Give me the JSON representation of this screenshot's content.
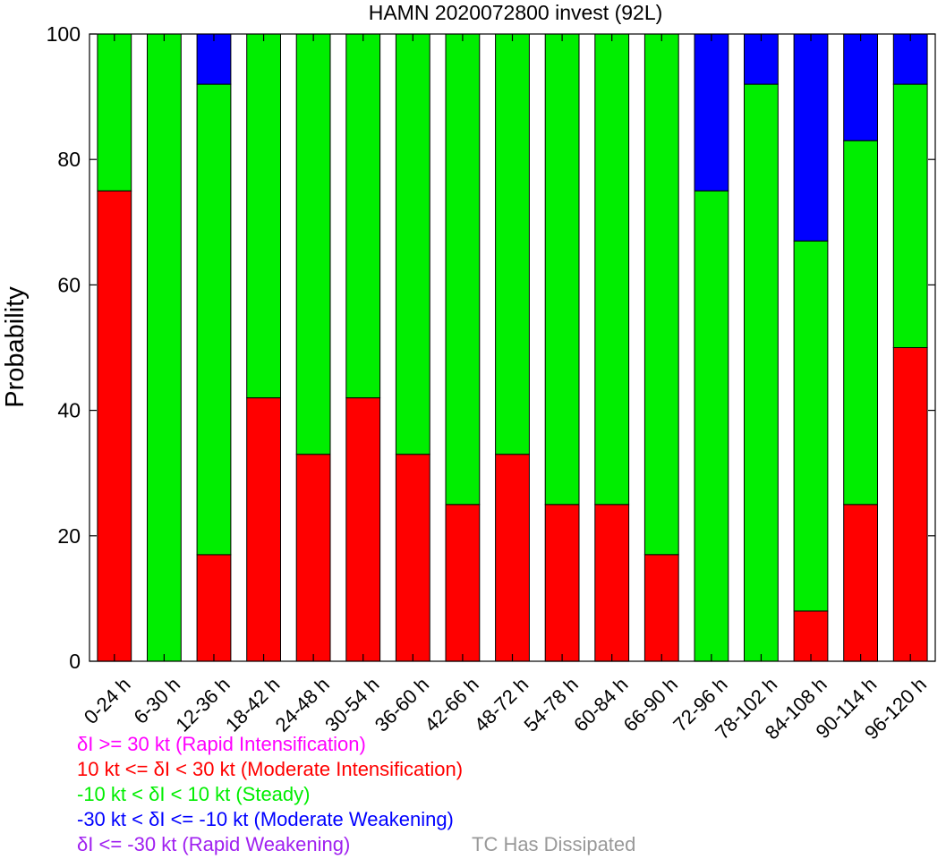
{
  "chart_data": {
    "type": "bar",
    "stacked": true,
    "title": "HAMN 2020072800 invest (92L)",
    "xlabel": "",
    "ylabel": "Probability",
    "ylim": [
      0,
      100
    ],
    "yticks": [
      0,
      20,
      40,
      60,
      80,
      100
    ],
    "grid": false,
    "categories": [
      "0-24 h",
      "6-30 h",
      "12-36 h",
      "18-42 h",
      "24-48 h",
      "30-54 h",
      "36-60 h",
      "42-66 h",
      "48-72 h",
      "54-78 h",
      "60-84 h",
      "66-90 h",
      "72-96 h",
      "78-102 h",
      "84-108 h",
      "90-114 h",
      "96-120 h"
    ],
    "series": [
      {
        "name": "δI >= 30 kt (Rapid Intensification)",
        "color": "#ff00ff",
        "values": [
          0,
          0,
          0,
          0,
          0,
          0,
          0,
          0,
          0,
          0,
          0,
          0,
          0,
          0,
          0,
          0,
          0
        ]
      },
      {
        "name": "10 kt <= δI < 30 kt (Moderate Intensification)",
        "color": "#ff0000",
        "values": [
          75,
          0,
          17,
          42,
          33,
          42,
          33,
          25,
          33,
          25,
          25,
          17,
          0,
          0,
          8,
          25,
          50
        ]
      },
      {
        "name": "-10 kt < δI < 10 kt (Steady)",
        "color": "#00ee00",
        "values": [
          25,
          100,
          75,
          58,
          67,
          58,
          67,
          75,
          67,
          75,
          75,
          83,
          75,
          92,
          59,
          58,
          42
        ]
      },
      {
        "name": "-30 kt < δI <= -10 kt (Moderate Weakening)",
        "color": "#0000ff",
        "values": [
          0,
          0,
          8,
          0,
          0,
          0,
          0,
          0,
          0,
          0,
          0,
          0,
          25,
          8,
          33,
          17,
          8
        ]
      },
      {
        "name": "δI <= -30 kt (Rapid Weakening)",
        "color": "#a020f0",
        "values": [
          0,
          0,
          0,
          0,
          0,
          0,
          0,
          0,
          0,
          0,
          0,
          0,
          0,
          0,
          0,
          0,
          0
        ]
      }
    ],
    "extra_legend": {
      "label": "TC Has Dissipated",
      "color": "#999999"
    }
  }
}
